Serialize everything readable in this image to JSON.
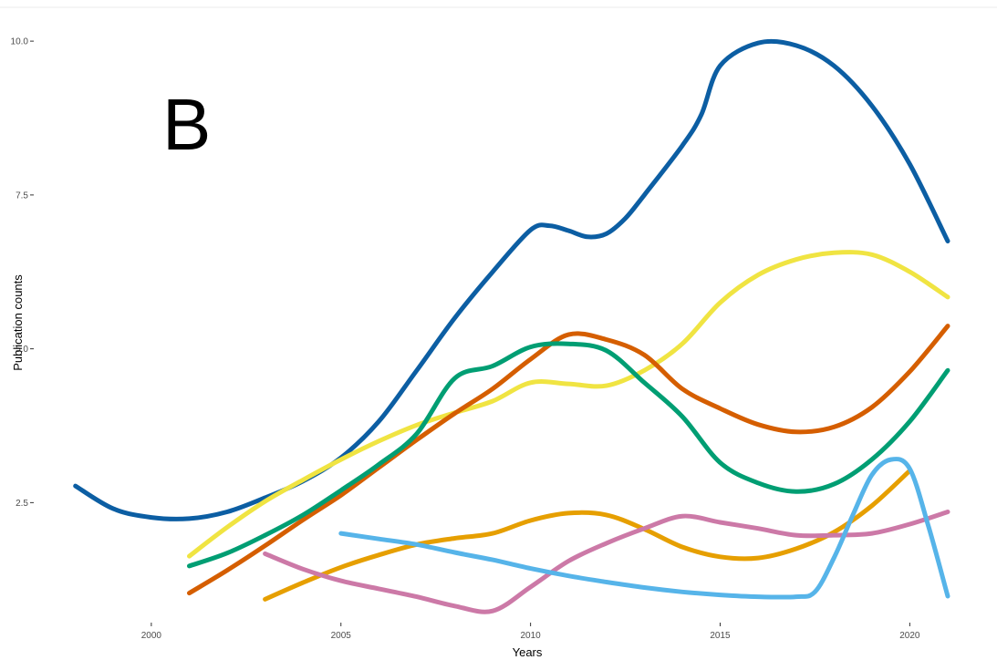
{
  "chart_data": {
    "type": "line",
    "panel_label": "B",
    "xlabel": "Years",
    "ylabel": "Publication counts",
    "xlim": [
      1996.9,
      2022.3
    ],
    "ylim": [
      0.55,
      10.55
    ],
    "x_ticks": [
      2000,
      2005,
      2010,
      2015,
      2020
    ],
    "x_tick_labels": [
      "2000",
      "2005",
      "2010",
      "2015",
      "2020"
    ],
    "y_ticks": [
      2.5,
      5.0,
      7.5,
      10.0
    ],
    "y_tick_labels": [
      "2.5",
      "5.0",
      "7.5",
      "10.0"
    ],
    "grid": false,
    "legend": "none",
    "series": [
      {
        "color": "#0C5EA3",
        "points": [
          [
            1998,
            2.77
          ],
          [
            1999,
            2.4
          ],
          [
            2000,
            2.26
          ],
          [
            2001,
            2.24
          ],
          [
            2002,
            2.35
          ],
          [
            2003,
            2.58
          ],
          [
            2004,
            2.85
          ],
          [
            2005,
            3.23
          ],
          [
            2006,
            3.82
          ],
          [
            2007,
            4.65
          ],
          [
            2008,
            5.5
          ],
          [
            2009,
            6.25
          ],
          [
            2010,
            6.93
          ],
          [
            2010.5,
            7.0
          ],
          [
            2011,
            6.92
          ],
          [
            2011.5,
            6.82
          ],
          [
            2012,
            6.87
          ],
          [
            2012.5,
            7.12
          ],
          [
            2013,
            7.5
          ],
          [
            2014,
            8.3
          ],
          [
            2014.5,
            8.8
          ],
          [
            2015,
            9.6
          ],
          [
            2016,
            9.97
          ],
          [
            2017,
            9.93
          ],
          [
            2018,
            9.6
          ],
          [
            2019,
            8.95
          ],
          [
            2020,
            8.0
          ],
          [
            2021,
            6.75
          ]
        ]
      },
      {
        "color": "#F0E442",
        "points": [
          [
            2001,
            1.63
          ],
          [
            2002,
            2.1
          ],
          [
            2003,
            2.52
          ],
          [
            2004,
            2.87
          ],
          [
            2005,
            3.2
          ],
          [
            2006,
            3.5
          ],
          [
            2007,
            3.76
          ],
          [
            2008,
            3.96
          ],
          [
            2009,
            4.15
          ],
          [
            2010,
            4.45
          ],
          [
            2011,
            4.43
          ],
          [
            2012,
            4.4
          ],
          [
            2013,
            4.65
          ],
          [
            2014,
            5.08
          ],
          [
            2015,
            5.75
          ],
          [
            2016,
            6.2
          ],
          [
            2017,
            6.45
          ],
          [
            2018,
            6.56
          ],
          [
            2019,
            6.53
          ],
          [
            2020,
            6.25
          ],
          [
            2021,
            5.84
          ]
        ]
      },
      {
        "color": "#D55E00",
        "points": [
          [
            2001,
            1.03
          ],
          [
            2002,
            1.4
          ],
          [
            2003,
            1.8
          ],
          [
            2004,
            2.22
          ],
          [
            2005,
            2.62
          ],
          [
            2006,
            3.07
          ],
          [
            2007,
            3.52
          ],
          [
            2008,
            3.95
          ],
          [
            2009,
            4.35
          ],
          [
            2010,
            4.83
          ],
          [
            2011,
            5.23
          ],
          [
            2012,
            5.15
          ],
          [
            2013,
            4.9
          ],
          [
            2014,
            4.35
          ],
          [
            2015,
            4.03
          ],
          [
            2016,
            3.77
          ],
          [
            2017,
            3.65
          ],
          [
            2018,
            3.73
          ],
          [
            2019,
            4.05
          ],
          [
            2020,
            4.63
          ],
          [
            2021,
            5.37
          ]
        ]
      },
      {
        "color": "#009E73",
        "points": [
          [
            2001,
            1.47
          ],
          [
            2002,
            1.68
          ],
          [
            2003,
            1.97
          ],
          [
            2004,
            2.3
          ],
          [
            2005,
            2.7
          ],
          [
            2006,
            3.12
          ],
          [
            2007,
            3.62
          ],
          [
            2008,
            4.52
          ],
          [
            2009,
            4.72
          ],
          [
            2010,
            5.03
          ],
          [
            2011,
            5.08
          ],
          [
            2012,
            4.97
          ],
          [
            2013,
            4.45
          ],
          [
            2014,
            3.9
          ],
          [
            2015,
            3.15
          ],
          [
            2016,
            2.82
          ],
          [
            2017,
            2.68
          ],
          [
            2018,
            2.8
          ],
          [
            2019,
            3.2
          ],
          [
            2020,
            3.82
          ],
          [
            2021,
            4.65
          ]
        ]
      },
      {
        "color": "#E69F00",
        "points": [
          [
            2003,
            0.93
          ],
          [
            2004,
            1.2
          ],
          [
            2005,
            1.45
          ],
          [
            2006,
            1.65
          ],
          [
            2007,
            1.82
          ],
          [
            2008,
            1.92
          ],
          [
            2009,
            2.0
          ],
          [
            2010,
            2.21
          ],
          [
            2011,
            2.33
          ],
          [
            2012,
            2.3
          ],
          [
            2013,
            2.07
          ],
          [
            2014,
            1.78
          ],
          [
            2015,
            1.62
          ],
          [
            2016,
            1.6
          ],
          [
            2017,
            1.75
          ],
          [
            2018,
            2.02
          ],
          [
            2019,
            2.45
          ],
          [
            2020,
            3.02
          ]
        ]
      },
      {
        "color": "#CC79A7",
        "points": [
          [
            2003,
            1.67
          ],
          [
            2004,
            1.42
          ],
          [
            2005,
            1.23
          ],
          [
            2006,
            1.1
          ],
          [
            2007,
            0.97
          ],
          [
            2008,
            0.82
          ],
          [
            2009,
            0.74
          ],
          [
            2010,
            1.13
          ],
          [
            2011,
            1.55
          ],
          [
            2012,
            1.84
          ],
          [
            2013,
            2.08
          ],
          [
            2014,
            2.28
          ],
          [
            2015,
            2.18
          ],
          [
            2016,
            2.08
          ],
          [
            2017,
            1.97
          ],
          [
            2018,
            1.97
          ],
          [
            2019,
            2.0
          ],
          [
            2020,
            2.15
          ],
          [
            2021,
            2.35
          ]
        ]
      },
      {
        "color": "#56B4E9",
        "points": [
          [
            2005,
            2.0
          ],
          [
            2006,
            1.91
          ],
          [
            2007,
            1.82
          ],
          [
            2008,
            1.69
          ],
          [
            2009,
            1.57
          ],
          [
            2010,
            1.43
          ],
          [
            2011,
            1.31
          ],
          [
            2012,
            1.21
          ],
          [
            2013,
            1.12
          ],
          [
            2014,
            1.05
          ],
          [
            2015,
            1.0
          ],
          [
            2016,
            0.97
          ],
          [
            2017,
            0.97
          ],
          [
            2017.5,
            1.05
          ],
          [
            2018,
            1.6
          ],
          [
            2018.5,
            2.3
          ],
          [
            2019,
            2.95
          ],
          [
            2019.5,
            3.2
          ],
          [
            2020,
            3.05
          ],
          [
            2020.5,
            2.1
          ],
          [
            2021,
            0.98
          ]
        ]
      }
    ]
  }
}
